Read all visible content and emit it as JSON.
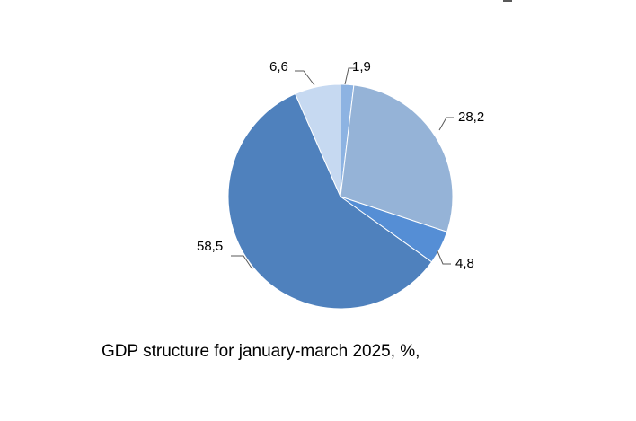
{
  "chart_data": {
    "type": "pie",
    "title": "GDP structure for january-march 2025, %,",
    "start_angle_deg": 0,
    "direction": "clockwise",
    "slices": [
      {
        "label": "1,9",
        "value": 1.9,
        "color": "#8DB3E2"
      },
      {
        "label": "28,2",
        "value": 28.2,
        "color": "#95B3D7"
      },
      {
        "label": "4,8",
        "value": 4.8,
        "color": "#558ED5"
      },
      {
        "label": "58,5",
        "value": 58.5,
        "color": "#4F81BD"
      },
      {
        "label": "6,6",
        "value": 6.6,
        "color": "#C6D9F1"
      }
    ],
    "legend": "none",
    "data_labels": "outside with leader lines"
  }
}
